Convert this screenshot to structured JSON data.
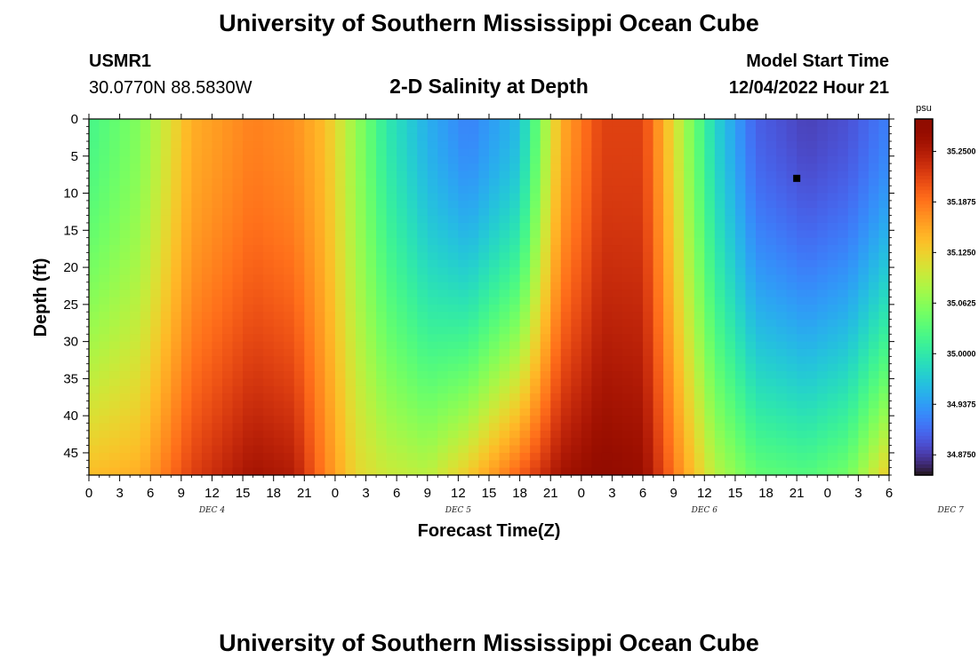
{
  "header": {
    "title": "University of Southern Mississippi Ocean Cube",
    "station_id": "USMR1",
    "coords": "30.0770N  88.5830W",
    "subtitle": "2-D Salinity at Depth",
    "model_start_label": "Model Start Time",
    "model_start_value": "12/04/2022 Hour 21"
  },
  "footer": {
    "title": "University of Southern Mississippi Ocean Cube"
  },
  "chart_data": {
    "type": "heatmap",
    "xlabel": "Forecast Time(Z)",
    "ylabel": "Depth (ft)",
    "x_hour_ticks": [
      "0",
      "3",
      "6",
      "9",
      "12",
      "15",
      "18",
      "21",
      "0",
      "3",
      "6",
      "9",
      "12",
      "15",
      "18",
      "21",
      "0",
      "3",
      "6",
      "9",
      "12",
      "15",
      "18",
      "21",
      "0",
      "3",
      "6"
    ],
    "day_labels": [
      "DEC 4",
      "DEC 5",
      "DEC 6",
      "DEC 7"
    ],
    "xlim_hours": [
      0,
      78
    ],
    "y_ticks": [
      "0",
      "5",
      "10",
      "15",
      "20",
      "25",
      "30",
      "35",
      "40",
      "45"
    ],
    "ylim": [
      0,
      48
    ],
    "y_inverted": true,
    "colorbar": {
      "unit": "psu",
      "labels": [
        "35.2500",
        "35.1875",
        "35.1250",
        "35.0625",
        "35.0000",
        "34.9375",
        "34.8750"
      ],
      "range": [
        34.85,
        35.29
      ],
      "colormap": "turbo"
    },
    "marker": {
      "hour": 69,
      "depth_ft": 8
    },
    "profiles": [
      {
        "hour": 0,
        "surface": 35.02,
        "bottom": 35.14
      },
      {
        "hour": 5,
        "surface": 35.06,
        "bottom": 35.15
      },
      {
        "hour": 10,
        "surface": 35.15,
        "bottom": 35.22
      },
      {
        "hour": 16,
        "surface": 35.18,
        "bottom": 35.26
      },
      {
        "hour": 20,
        "surface": 35.17,
        "bottom": 35.25
      },
      {
        "hour": 23,
        "surface": 35.14,
        "bottom": 35.18
      },
      {
        "hour": 26,
        "surface": 35.07,
        "bottom": 35.12
      },
      {
        "hour": 29,
        "surface": 35.0,
        "bottom": 35.1
      },
      {
        "hour": 33,
        "surface": 34.95,
        "bottom": 35.09
      },
      {
        "hour": 37,
        "surface": 34.92,
        "bottom": 35.13
      },
      {
        "hour": 42,
        "surface": 34.96,
        "bottom": 35.2
      },
      {
        "hour": 46,
        "surface": 35.15,
        "bottom": 35.26
      },
      {
        "hour": 50,
        "surface": 35.22,
        "bottom": 35.28
      },
      {
        "hour": 54,
        "surface": 35.22,
        "bottom": 35.27
      },
      {
        "hour": 58,
        "surface": 35.08,
        "bottom": 35.16
      },
      {
        "hour": 61,
        "surface": 34.98,
        "bottom": 35.09
      },
      {
        "hour": 65,
        "surface": 34.9,
        "bottom": 35.04
      },
      {
        "hour": 70,
        "surface": 34.88,
        "bottom": 35.03
      },
      {
        "hour": 74,
        "surface": 34.89,
        "bottom": 35.05
      },
      {
        "hour": 78,
        "surface": 34.92,
        "bottom": 35.13
      }
    ]
  }
}
